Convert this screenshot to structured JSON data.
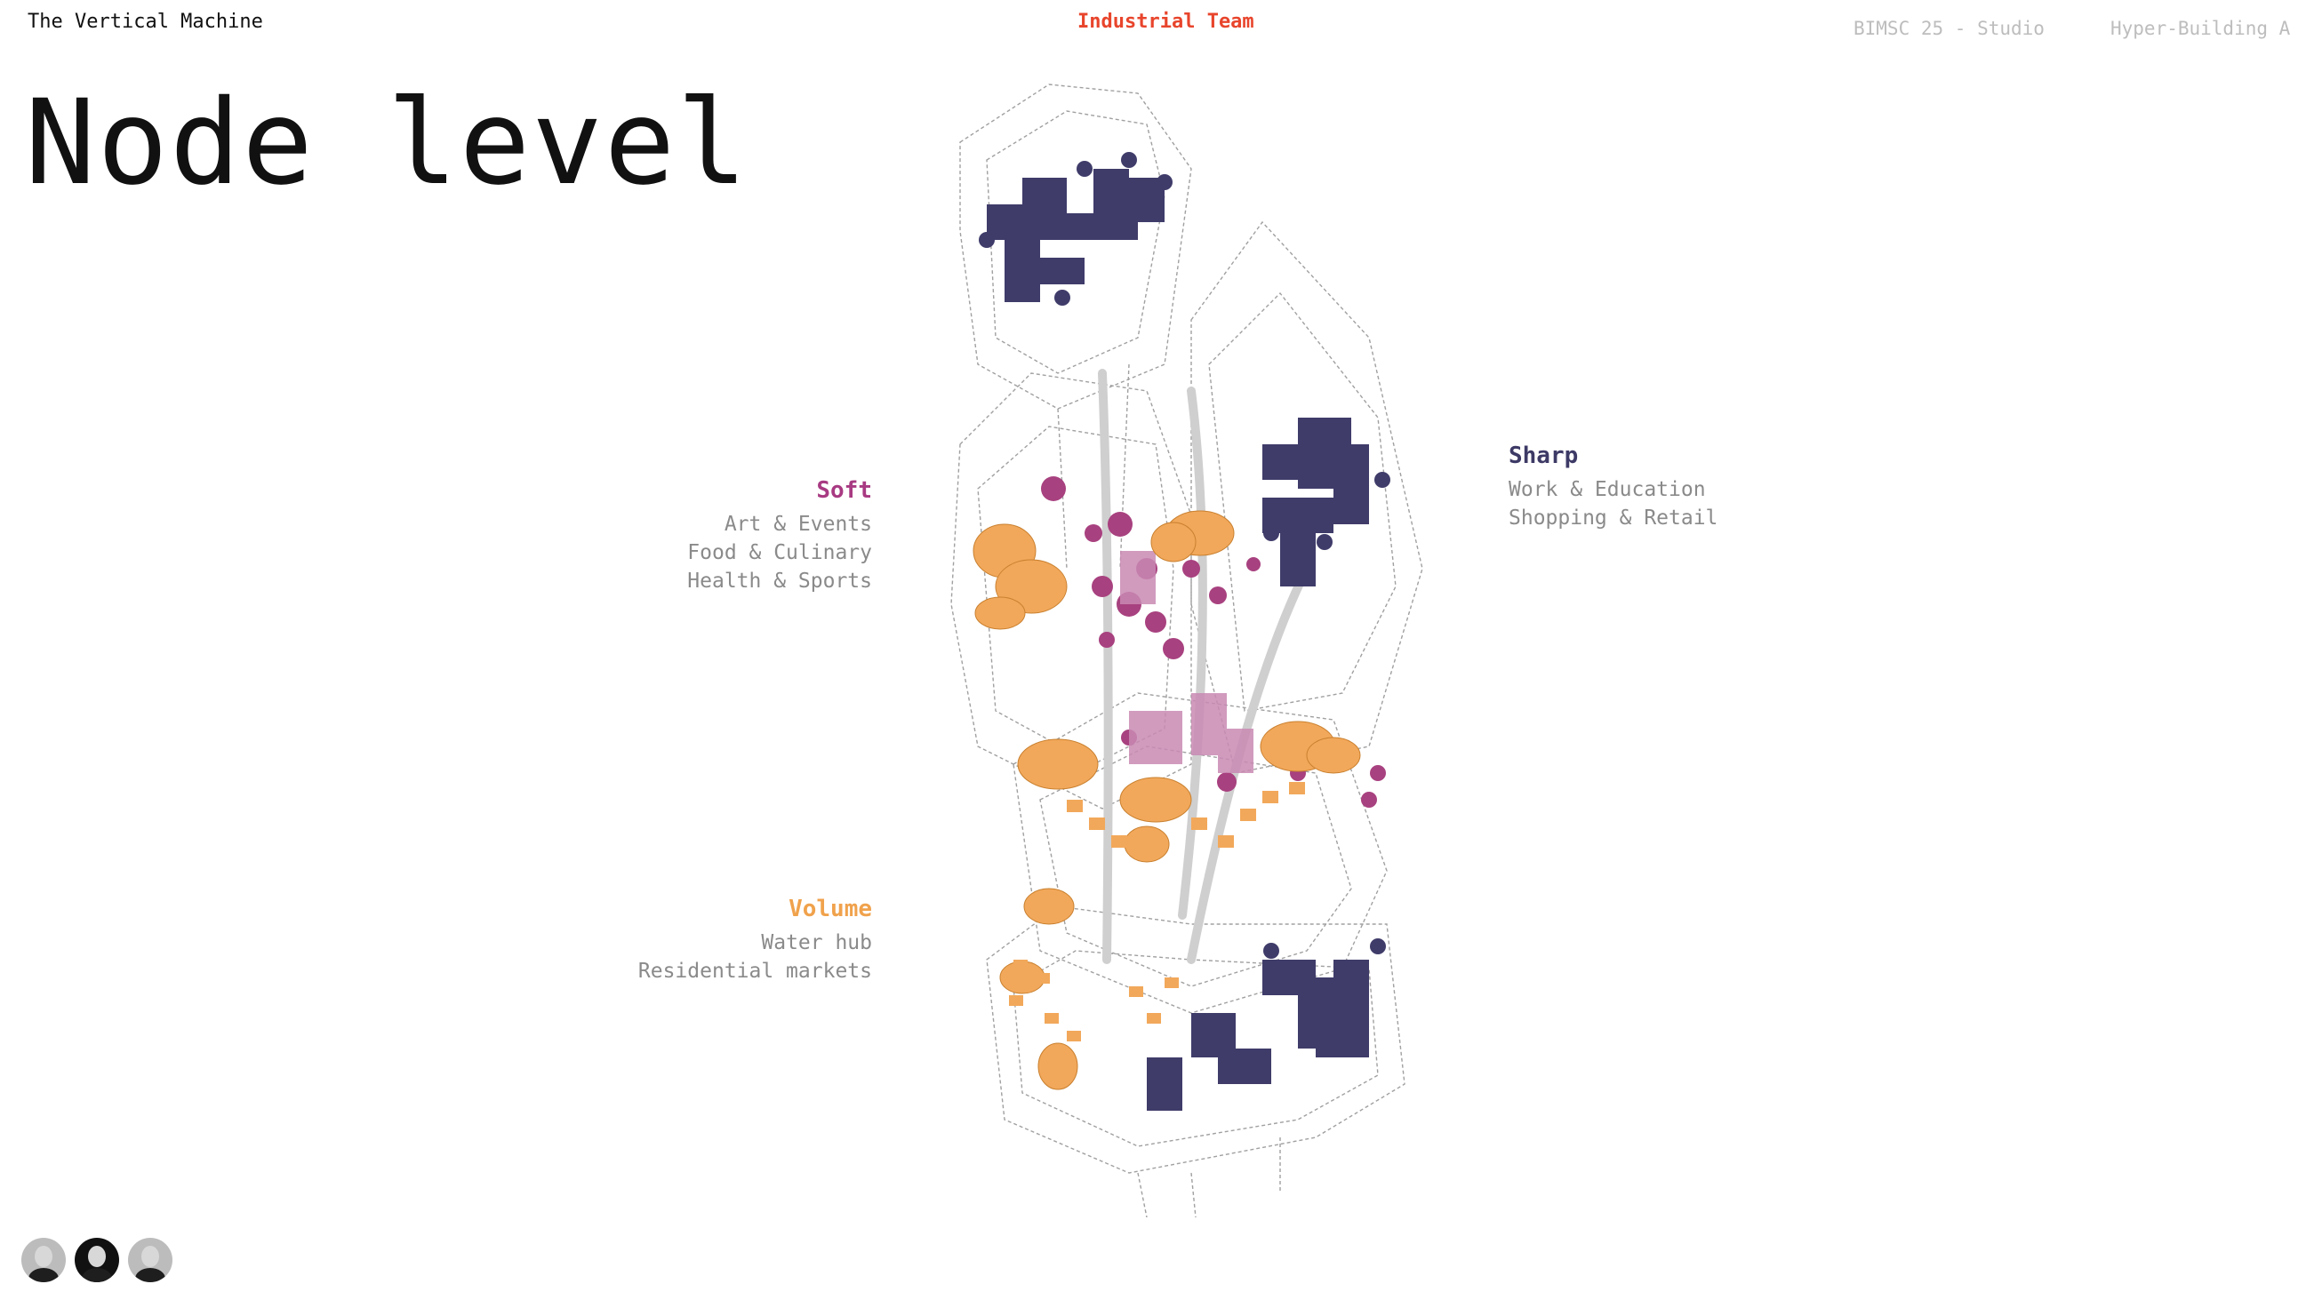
{
  "header": {
    "project": "The Vertical Machine",
    "team": "Industrial Team",
    "course": "BIMSC 25 - Studio",
    "building": "Hyper-Building A"
  },
  "page_title": "Node level",
  "groups": {
    "soft": {
      "title": "Soft",
      "color": "#a83a82",
      "items": [
        "Art & Events",
        "Food & Culinary",
        "Health & Sports"
      ]
    },
    "volume": {
      "title": "Volume",
      "color": "#f0a24c",
      "items": [
        "Water hub",
        "Residential markets"
      ]
    },
    "sharp": {
      "title": "Sharp",
      "color": "#3d3a66",
      "items": [
        "Work & Education",
        "Shopping & Retail"
      ]
    }
  },
  "colors": {
    "accent": "#e8452c",
    "muted_text": "#8a8a8a",
    "header_muted": "#bdbdbd",
    "wireframe": "#9a9a9a",
    "volume_fill": "#f2a85a",
    "soft_fill": "#a8417f",
    "sharp_fill": "#3f3c6a"
  },
  "icons": {
    "diagram": "axonometric-tower-diagram",
    "avatars": [
      "team-member-avatar",
      "team-member-avatar",
      "team-member-avatar"
    ]
  }
}
